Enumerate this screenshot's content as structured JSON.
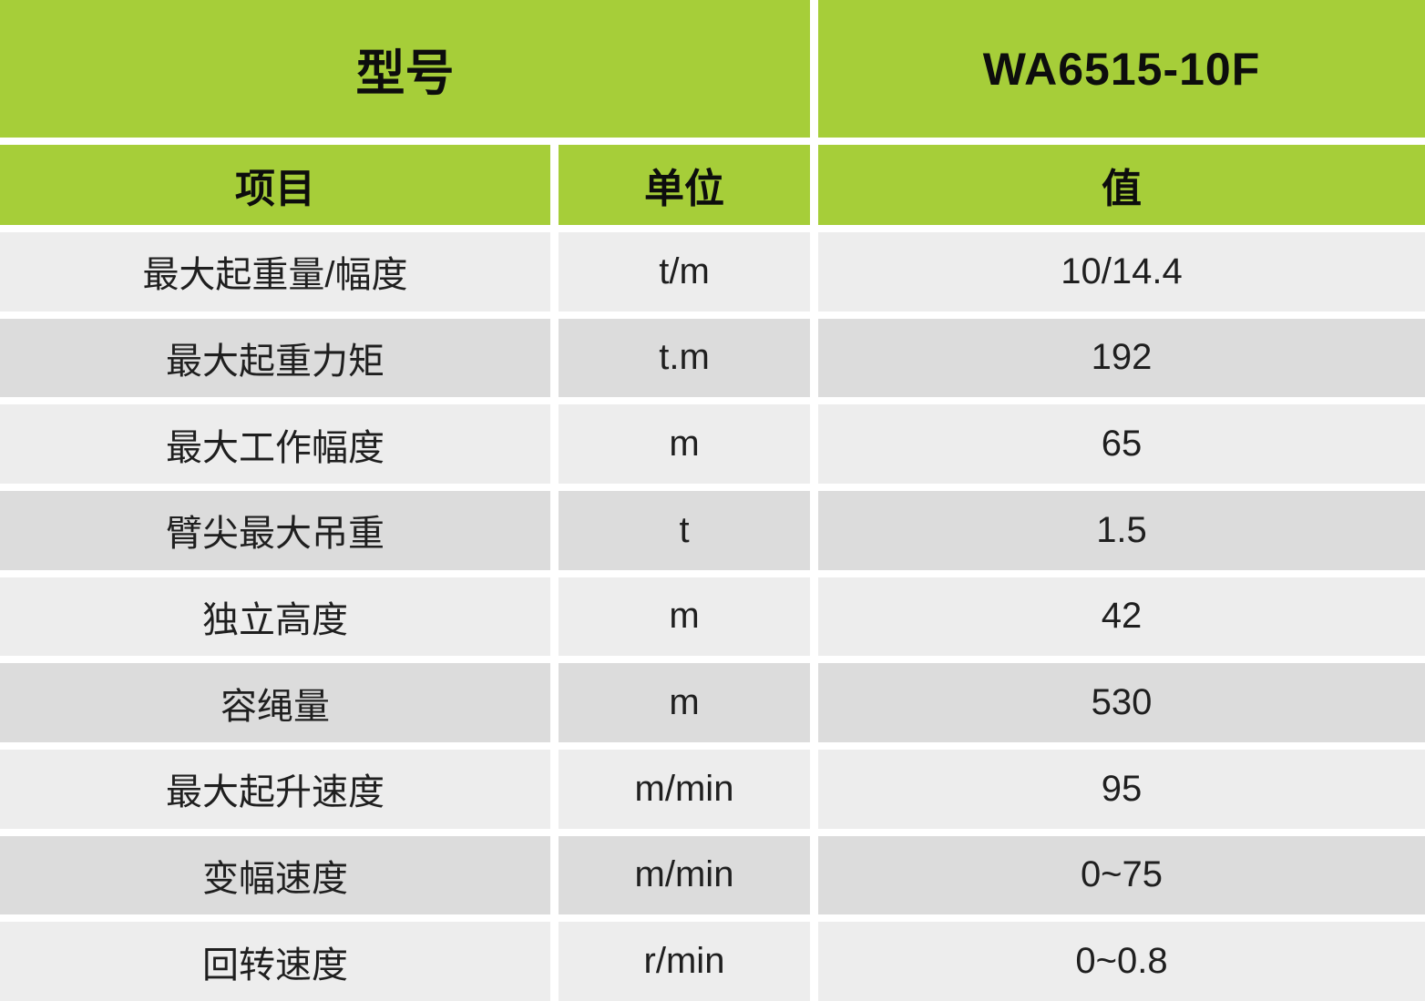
{
  "table": {
    "model_label": "型号",
    "model_value": "WA6515-10F",
    "columns": {
      "item": "项目",
      "unit": "单位",
      "value": "值"
    },
    "rows": [
      {
        "item": "最大起重量/幅度",
        "unit": "t/m",
        "value": "10/14.4"
      },
      {
        "item": "最大起重力矩",
        "unit": "t.m",
        "value": "192"
      },
      {
        "item": "最大工作幅度",
        "unit": "m",
        "value": "65"
      },
      {
        "item": "臂尖最大吊重",
        "unit": "t",
        "value": "1.5"
      },
      {
        "item": "独立高度",
        "unit": "m",
        "value": "42"
      },
      {
        "item": "容绳量",
        "unit": "m",
        "value": "530"
      },
      {
        "item": "最大起升速度",
        "unit": "m/min",
        "value": "95"
      },
      {
        "item": "变幅速度",
        "unit": "m/min",
        "value": "0~75"
      },
      {
        "item": "回转速度",
        "unit": "r/min",
        "value": "0~0.8"
      }
    ],
    "colors": {
      "header_green": "#a6ce39",
      "row_light": "#ededed",
      "row_dark": "#dcdcdc",
      "text": "#1f1f1f"
    }
  }
}
